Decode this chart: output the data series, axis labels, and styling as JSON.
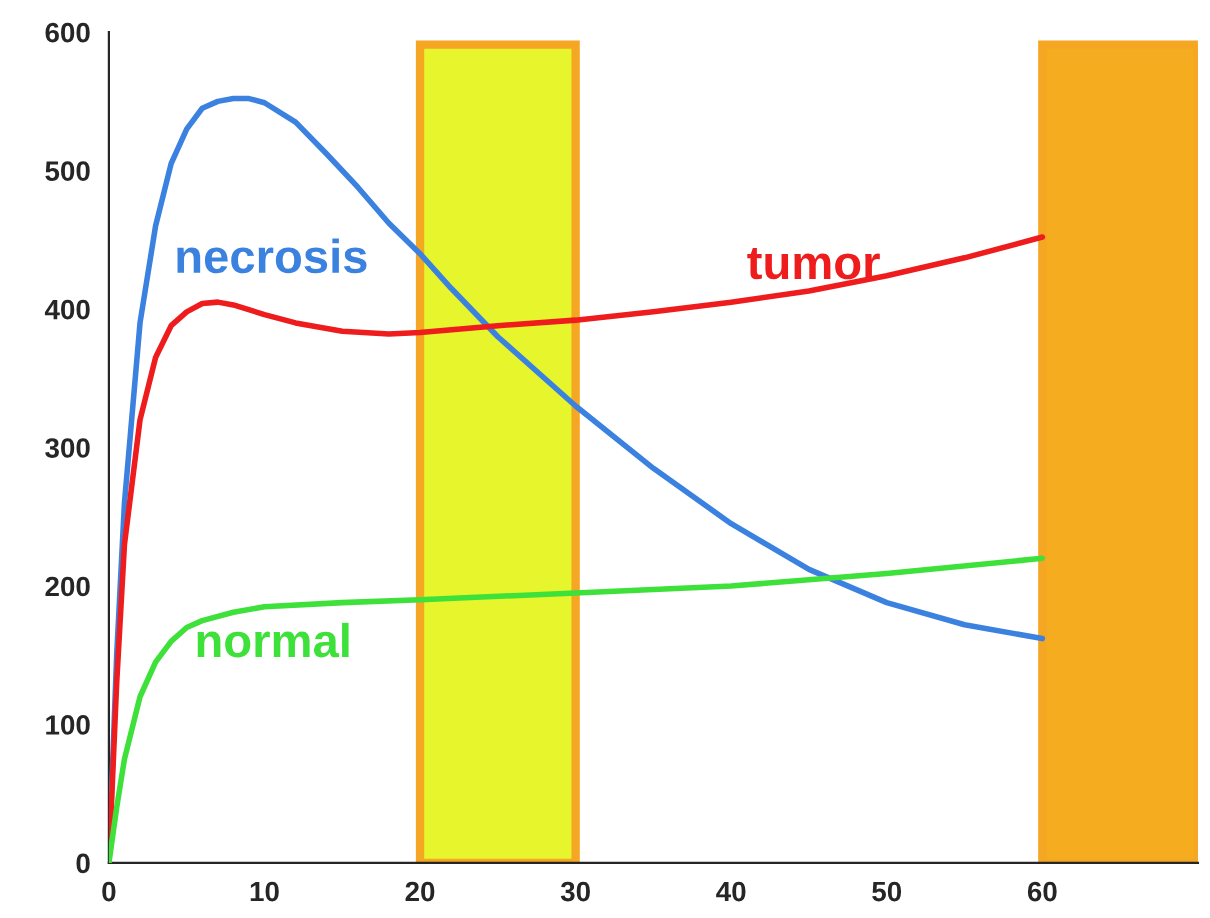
{
  "chart_data": {
    "type": "line",
    "xlim": [
      0,
      70
    ],
    "xticks": [
      0,
      10,
      20,
      30,
      40,
      50,
      60
    ],
    "ylim": [
      0,
      600
    ],
    "yticks": [
      0,
      100,
      200,
      300,
      400,
      500,
      600
    ],
    "grid": false,
    "legend": false,
    "marker": "none",
    "line_style": "solid",
    "series": [
      {
        "name": "necrosis",
        "color": "#3b82e0",
        "x": [
          0,
          0.5,
          1,
          2,
          3,
          4,
          5,
          6,
          7,
          8,
          9,
          10,
          12,
          14,
          16,
          18,
          20,
          22,
          25,
          28,
          30,
          35,
          40,
          45,
          50,
          55,
          60
        ],
        "values": [
          0,
          150,
          260,
          390,
          460,
          505,
          530,
          545,
          550,
          552,
          552,
          549,
          535,
          512,
          488,
          462,
          440,
          415,
          380,
          350,
          330,
          285,
          245,
          212,
          188,
          172,
          162
        ]
      },
      {
        "name": "tumor",
        "color": "#ee1c1c",
        "x": [
          0,
          0.5,
          1,
          2,
          3,
          4,
          5,
          6,
          7,
          8,
          10,
          12,
          15,
          18,
          20,
          25,
          30,
          35,
          40,
          45,
          50,
          55,
          60
        ],
        "values": [
          0,
          130,
          230,
          320,
          365,
          388,
          398,
          404,
          405,
          403,
          396,
          390,
          384,
          382,
          383,
          388,
          392,
          398,
          405,
          413,
          424,
          437,
          452
        ]
      },
      {
        "name": "normal",
        "color": "#3ee03a",
        "x": [
          0,
          0.5,
          1,
          2,
          3,
          4,
          5,
          6,
          8,
          10,
          15,
          20,
          30,
          40,
          50,
          60
        ],
        "values": [
          0,
          40,
          75,
          120,
          145,
          160,
          170,
          175,
          181,
          185,
          188,
          190,
          195,
          200,
          209,
          220
        ]
      }
    ],
    "bands": [
      {
        "axis": "x",
        "from": 20,
        "to": 30,
        "color": "#e6f52c"
      },
      {
        "axis": "x",
        "from": 60,
        "to": 70,
        "color": "#f5ad1f"
      }
    ]
  }
}
